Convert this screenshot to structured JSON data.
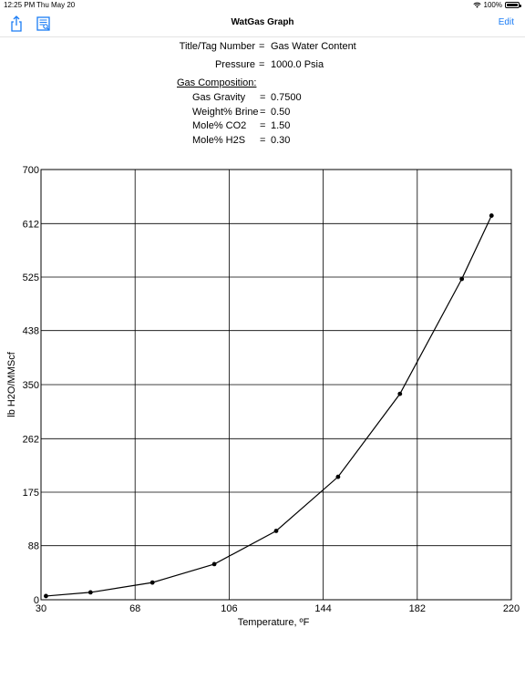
{
  "status_bar": {
    "time": "12:25 PM",
    "date": "Thu May 20",
    "battery": "100%"
  },
  "nav": {
    "title": "WatGas Graph",
    "edit_label": "Edit",
    "share_icon": "share-icon",
    "report_icon": "report-icon"
  },
  "info": {
    "title_label": "Title/Tag Number",
    "title_value": "Gas Water Content",
    "pressure_label": "Pressure",
    "pressure_value": "1000.0 Psia",
    "equals": "=",
    "composition_heading": "Gas Composition:",
    "composition": [
      {
        "label": "Gas Gravity",
        "value": "0.7500"
      },
      {
        "label": "Weight% Brine",
        "value": "0.50"
      },
      {
        "label": "Mole% CO2",
        "value": "1.50"
      },
      {
        "label": "Mole% H2S",
        "value": "0.30"
      }
    ]
  },
  "chart_data": {
    "type": "line",
    "xlabel": "Temperature, ºF",
    "ylabel": "lb H2O/MMScf",
    "xlim": [
      30,
      220
    ],
    "ylim": [
      0,
      700
    ],
    "x_ticks": [
      "30",
      "68",
      "106",
      "144",
      "182",
      "220"
    ],
    "y_ticks": [
      "0",
      "88",
      "175",
      "262",
      "350",
      "438",
      "525",
      "612",
      "700"
    ],
    "grid": true,
    "series": [
      {
        "x": [
          32,
          50,
          75,
          100,
          125,
          150,
          175,
          200,
          212
        ],
        "y": [
          6,
          12,
          28,
          58,
          112,
          200,
          335,
          522,
          625
        ],
        "color": "#000000",
        "markers": true
      }
    ]
  }
}
